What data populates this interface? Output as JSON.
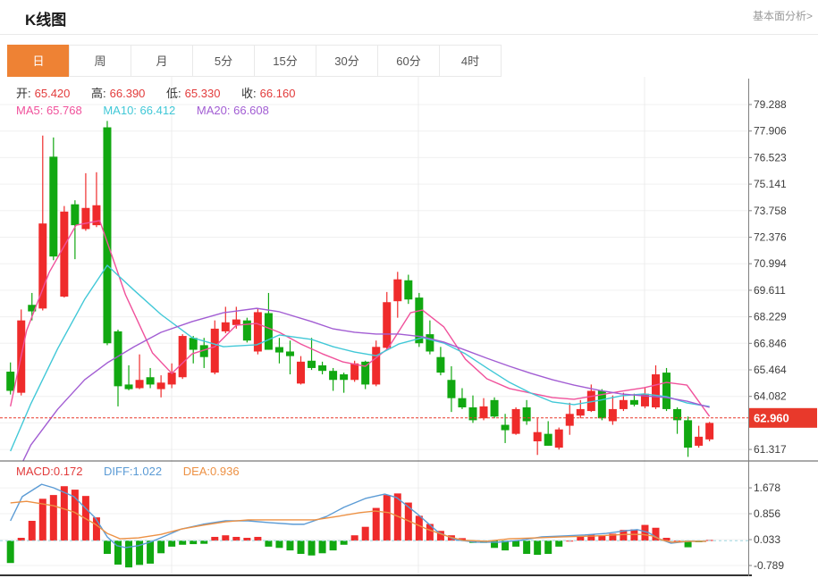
{
  "header": {
    "title": "K线图",
    "link": "基本面分析>"
  },
  "tabs": {
    "items": [
      "日",
      "周",
      "月",
      "5分",
      "15分",
      "30分",
      "60分",
      "4时"
    ],
    "active_index": 0
  },
  "ohlc": {
    "o_label": "开:",
    "o": "65.420",
    "h_label": "高:",
    "h": "66.390",
    "l_label": "低:",
    "l": "65.330",
    "c_label": "收:",
    "c": "66.160"
  },
  "ma_header": {
    "ma5": "MA5: 65.768",
    "ma10": "MA10: 66.412",
    "ma20": "MA20: 66.608"
  },
  "macd_header": {
    "macd": "MACD:0.172",
    "diff": "DIFF:1.022",
    "dea": "DEA:0.936"
  },
  "colors": {
    "up": "#11a811",
    "down": "#ef2b2b",
    "ma5": "#f0519b",
    "ma10": "#41c8d7",
    "ma20": "#a25dd3",
    "diff_line": "#5b9bd5",
    "dea_line": "#ed9144",
    "tab_active": "#ee8234",
    "price_badge": "#e8392b",
    "label_red": "#e23b3b",
    "grid": "#f0f0f0",
    "vgrid": "#ececec",
    "axis": "#808080",
    "tick_text": "#3c3c3c"
  },
  "chart_data": {
    "type": "candlestick+macd",
    "main": {
      "y_ticks": [
        "79.288",
        "77.906",
        "76.523",
        "75.141",
        "73.758",
        "72.376",
        "70.994",
        "69.611",
        "68.229",
        "66.846",
        "65.464",
        "64.082",
        "61.317"
      ],
      "axis_top_value": 79.288,
      "axis_step_value": 1.38238,
      "visible_slots": 14,
      "current_price": "62.960",
      "candles_ohlc": [
        [
          64.37,
          65.85,
          64.18,
          65.37
        ],
        [
          68.04,
          68.61,
          64.13,
          64.27
        ],
        [
          68.51,
          69.47,
          68.04,
          68.85
        ],
        [
          73.09,
          77.67,
          68.56,
          68.66
        ],
        [
          71.37,
          77.57,
          71.18,
          76.57
        ],
        [
          73.71,
          74.0,
          69.23,
          69.28
        ],
        [
          73.0,
          74.3,
          71.23,
          74.09
        ],
        [
          73.9,
          75.71,
          72.71,
          72.8
        ],
        [
          74.04,
          75.76,
          72.9,
          73.0
        ],
        [
          66.85,
          78.43,
          66.75,
          78.1
        ],
        [
          64.61,
          67.56,
          63.56,
          67.47
        ],
        [
          64.46,
          65.7,
          64.4,
          64.7
        ],
        [
          64.94,
          66.27,
          64.46,
          64.51
        ],
        [
          64.7,
          65.56,
          64.51,
          65.08
        ],
        [
          64.8,
          65.18,
          64.03,
          64.46
        ],
        [
          65.32,
          65.8,
          64.51,
          64.7
        ],
        [
          67.23,
          67.32,
          64.99,
          65.08
        ],
        [
          66.51,
          67.23,
          65.8,
          67.13
        ],
        [
          66.13,
          67.13,
          65.56,
          66.75
        ],
        [
          67.61,
          68.04,
          65.23,
          65.32
        ],
        [
          67.94,
          68.75,
          67.37,
          67.47
        ],
        [
          68.09,
          68.75,
          67.61,
          67.8
        ],
        [
          66.99,
          68.18,
          66.89,
          68.04
        ],
        [
          68.47,
          68.66,
          66.27,
          66.42
        ],
        [
          66.51,
          69.47,
          66.51,
          68.42
        ],
        [
          66.37,
          67.13,
          65.8,
          66.65
        ],
        [
          66.18,
          66.99,
          65.23,
          66.42
        ],
        [
          65.89,
          66.18,
          64.7,
          64.75
        ],
        [
          65.56,
          67.13,
          65.46,
          65.94
        ],
        [
          65.41,
          65.89,
          65.23,
          65.7
        ],
        [
          64.94,
          65.56,
          64.37,
          65.41
        ],
        [
          64.94,
          65.32,
          64.27,
          65.23
        ],
        [
          65.8,
          65.94,
          64.84,
          64.94
        ],
        [
          64.7,
          65.94,
          64.46,
          65.89
        ],
        [
          66.66,
          66.99,
          64.61,
          64.7
        ],
        [
          68.99,
          69.52,
          66.51,
          66.61
        ],
        [
          70.18,
          70.57,
          68.18,
          69.04
        ],
        [
          69.13,
          70.42,
          68.9,
          70.13
        ],
        [
          66.85,
          69.47,
          66.66,
          69.23
        ],
        [
          66.42,
          68.04,
          66.27,
          67.32
        ],
        [
          65.32,
          66.66,
          65.18,
          66.13
        ],
        [
          63.99,
          65.65,
          63.27,
          64.94
        ],
        [
          63.51,
          64.51,
          63.42,
          63.99
        ],
        [
          62.84,
          64.13,
          62.7,
          63.51
        ],
        [
          63.56,
          63.99,
          62.84,
          62.94
        ],
        [
          63.03,
          64.03,
          62.94,
          63.89
        ],
        [
          62.32,
          63.17,
          61.65,
          62.6
        ],
        [
          63.42,
          63.51,
          62.08,
          62.13
        ],
        [
          62.79,
          63.89,
          62.6,
          63.51
        ],
        [
          62.22,
          62.94,
          61.03,
          61.74
        ],
        [
          61.51,
          62.79,
          61.51,
          62.13
        ],
        [
          62.36,
          62.46,
          61.31,
          61.41
        ],
        [
          63.17,
          63.75,
          62.08,
          62.55
        ],
        [
          63.42,
          63.89,
          62.94,
          63.08
        ],
        [
          64.37,
          64.7,
          63.27,
          63.32
        ],
        [
          62.94,
          64.46,
          62.84,
          64.37
        ],
        [
          63.42,
          64.13,
          62.6,
          62.79
        ],
        [
          63.89,
          64.27,
          63.32,
          63.42
        ],
        [
          63.65,
          64.22,
          63.56,
          63.89
        ],
        [
          64.22,
          64.51,
          63.46,
          63.56
        ],
        [
          65.23,
          65.7,
          63.42,
          63.51
        ],
        [
          63.42,
          65.56,
          63.32,
          65.32
        ],
        [
          62.84,
          63.51,
          62.13,
          63.42
        ],
        [
          61.41,
          63.03,
          60.93,
          62.84
        ],
        [
          61.98,
          62.55,
          61.41,
          61.51
        ],
        [
          62.7,
          62.75,
          61.74,
          61.84
        ]
      ],
      "ma5": [
        [
          0,
          63.56
        ],
        [
          1.5,
          67.51
        ],
        [
          3.6,
          70.54
        ],
        [
          6.1,
          73.0
        ],
        [
          8.3,
          73.24
        ],
        [
          10.7,
          69.37
        ],
        [
          13.2,
          66.35
        ],
        [
          15,
          65.28
        ],
        [
          16.9,
          66.3
        ],
        [
          19,
          66.67
        ],
        [
          21,
          67.79
        ],
        [
          22.9,
          67.88
        ],
        [
          25,
          67.42
        ],
        [
          27,
          66.81
        ],
        [
          29,
          66.3
        ],
        [
          30.9,
          65.88
        ],
        [
          33,
          65.65
        ],
        [
          35.1,
          66.58
        ],
        [
          37.2,
          68.44
        ],
        [
          38.3,
          68.58
        ],
        [
          40.3,
          67.7
        ],
        [
          42.3,
          66.02
        ],
        [
          44.3,
          65.0
        ],
        [
          46.4,
          64.49
        ],
        [
          48.4,
          64.25
        ],
        [
          50.4,
          64.02
        ],
        [
          52.4,
          63.93
        ],
        [
          54.8,
          64.16
        ],
        [
          56.8,
          64.35
        ],
        [
          58.9,
          64.53
        ],
        [
          61,
          64.81
        ],
        [
          62.9,
          64.67
        ],
        [
          65,
          63.04
        ]
      ],
      "ma10": [
        [
          0,
          61.23
        ],
        [
          1.9,
          63.7
        ],
        [
          4.4,
          66.58
        ],
        [
          6.9,
          69.14
        ],
        [
          9,
          70.91
        ],
        [
          11.5,
          69.61
        ],
        [
          14,
          68.35
        ],
        [
          16.9,
          67.14
        ],
        [
          19.8,
          66.67
        ],
        [
          22.9,
          66.77
        ],
        [
          25,
          67.28
        ],
        [
          28,
          67.05
        ],
        [
          30,
          66.67
        ],
        [
          32,
          66.39
        ],
        [
          34,
          66.2
        ],
        [
          36.1,
          66.81
        ],
        [
          38.3,
          67.14
        ],
        [
          40.3,
          66.86
        ],
        [
          42.3,
          66.3
        ],
        [
          44.3,
          65.56
        ],
        [
          46.4,
          64.81
        ],
        [
          48.4,
          64.25
        ],
        [
          50.4,
          63.79
        ],
        [
          52.4,
          63.65
        ],
        [
          54.8,
          63.88
        ],
        [
          56.8,
          64.11
        ],
        [
          58.9,
          64.21
        ],
        [
          61,
          64.07
        ],
        [
          62.9,
          63.74
        ],
        [
          65,
          63.55
        ]
      ],
      "ma20": [
        [
          0,
          59.37
        ],
        [
          1.9,
          61.55
        ],
        [
          4.4,
          63.42
        ],
        [
          6.9,
          64.95
        ],
        [
          9,
          65.83
        ],
        [
          11.5,
          66.67
        ],
        [
          14,
          67.42
        ],
        [
          16.9,
          67.98
        ],
        [
          19.8,
          68.44
        ],
        [
          22.9,
          68.67
        ],
        [
          25,
          68.49
        ],
        [
          28,
          67.98
        ],
        [
          30,
          67.6
        ],
        [
          32,
          67.42
        ],
        [
          34,
          67.33
        ],
        [
          36.1,
          67.33
        ],
        [
          38.3,
          67.19
        ],
        [
          40.3,
          66.91
        ],
        [
          42.3,
          66.49
        ],
        [
          44.3,
          66.07
        ],
        [
          46.4,
          65.65
        ],
        [
          48.4,
          65.28
        ],
        [
          50.4,
          64.95
        ],
        [
          52.4,
          64.67
        ],
        [
          54.8,
          64.39
        ],
        [
          56.8,
          64.21
        ],
        [
          58.9,
          64.11
        ],
        [
          61,
          64.02
        ],
        [
          62.9,
          63.83
        ],
        [
          65,
          63.51
        ]
      ]
    },
    "macd": {
      "y_ticks": [
        "1.678",
        "0.856",
        "0.033",
        "-0.789"
      ],
      "histogram": [
        -0.71,
        0.09,
        0.63,
        1.33,
        1.45,
        1.73,
        1.62,
        1.42,
        0.74,
        -0.42,
        -0.76,
        -0.85,
        -0.77,
        -0.73,
        -0.4,
        -0.19,
        -0.13,
        -0.11,
        -0.1,
        0.12,
        0.17,
        0.12,
        0.09,
        0.12,
        -0.19,
        -0.23,
        -0.31,
        -0.42,
        -0.47,
        -0.4,
        -0.31,
        -0.13,
        0.17,
        0.44,
        1.04,
        1.45,
        1.5,
        1.21,
        0.79,
        0.53,
        0.31,
        0.17,
        0.08,
        -0.07,
        -0.07,
        -0.23,
        -0.31,
        -0.19,
        -0.42,
        -0.45,
        -0.42,
        -0.19,
        0.0,
        0.12,
        0.19,
        0.15,
        0.22,
        0.34,
        0.36,
        0.5,
        0.41,
        0.09,
        0.0,
        -0.21,
        -0.05,
        0.02
      ],
      "diff": [
        [
          0,
          0.63
        ],
        [
          1.1,
          1.4
        ],
        [
          2.9,
          1.79
        ],
        [
          4,
          1.68
        ],
        [
          5.9,
          1.4
        ],
        [
          7.9,
          0.72
        ],
        [
          9,
          0.12
        ],
        [
          9.9,
          -0.16
        ],
        [
          10.7,
          -0.22
        ],
        [
          11.9,
          -0.16
        ],
        [
          13.2,
          -0.02
        ],
        [
          14.4,
          0.15
        ],
        [
          15.9,
          0.37
        ],
        [
          17.9,
          0.52
        ],
        [
          20,
          0.63
        ],
        [
          22.1,
          0.63
        ],
        [
          24.1,
          0.57
        ],
        [
          26.3,
          0.52
        ],
        [
          27.3,
          0.52
        ],
        [
          29.4,
          0.77
        ],
        [
          31,
          1.06
        ],
        [
          33,
          1.34
        ],
        [
          34.8,
          1.48
        ],
        [
          35.9,
          1.37
        ],
        [
          37.8,
          0.86
        ],
        [
          39.8,
          0.26
        ],
        [
          41.4,
          0.03
        ],
        [
          43.3,
          -0.05
        ],
        [
          45.4,
          -0.05
        ],
        [
          47.4,
          0.01
        ],
        [
          49.4,
          0.12
        ],
        [
          51.4,
          0.15
        ],
        [
          53.4,
          0.18
        ],
        [
          55.4,
          0.23
        ],
        [
          57.3,
          0.32
        ],
        [
          58.3,
          0.35
        ],
        [
          59.3,
          0.26
        ],
        [
          60.3,
          0.06
        ],
        [
          61.4,
          -0.08
        ],
        [
          63,
          -0.02
        ],
        [
          64.7,
          -0.02
        ]
      ],
      "dea": [
        [
          0,
          1.2
        ],
        [
          1.5,
          1.25
        ],
        [
          4,
          1.11
        ],
        [
          5.9,
          0.91
        ],
        [
          7.9,
          0.52
        ],
        [
          9,
          0.23
        ],
        [
          10.2,
          0.06
        ],
        [
          11.9,
          0.09
        ],
        [
          14,
          0.2
        ],
        [
          15.9,
          0.37
        ],
        [
          17.9,
          0.49
        ],
        [
          20,
          0.6
        ],
        [
          22.1,
          0.66
        ],
        [
          24.1,
          0.66
        ],
        [
          26.3,
          0.66
        ],
        [
          28.3,
          0.66
        ],
        [
          30.4,
          0.77
        ],
        [
          32.5,
          0.89
        ],
        [
          33.9,
          0.94
        ],
        [
          35.2,
          0.89
        ],
        [
          36.8,
          0.66
        ],
        [
          38.7,
          0.37
        ],
        [
          40.8,
          0.12
        ],
        [
          42.1,
          0.01
        ],
        [
          44.3,
          -0.02
        ],
        [
          46.4,
          0.06
        ],
        [
          48.9,
          0.09
        ],
        [
          51.4,
          0.12
        ],
        [
          54.4,
          0.15
        ],
        [
          57.2,
          0.2
        ],
        [
          58.7,
          0.2
        ],
        [
          59.7,
          0.15
        ],
        [
          60.5,
          0.03
        ],
        [
          61.5,
          -0.05
        ],
        [
          63.2,
          -0.02
        ],
        [
          64.7,
          -0.02
        ]
      ]
    }
  }
}
